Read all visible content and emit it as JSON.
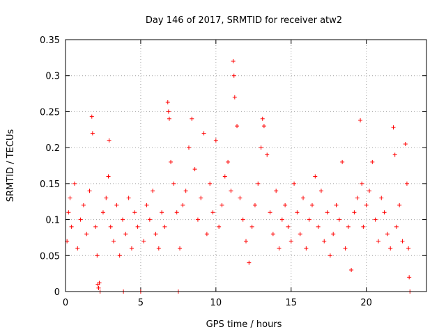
{
  "chart_data": {
    "type": "scatter",
    "title": "Day 146 of 2017, SRMTID for receiver atw2",
    "xlabel": "GPS time / hours",
    "ylabel": "SRMTID / TECUs",
    "xlim": [
      0,
      24
    ],
    "ylim": [
      0,
      0.35
    ],
    "xticks": [
      0,
      5,
      10,
      15,
      20
    ],
    "xtick_labels": [
      "0",
      "5",
      "10",
      "15",
      "20"
    ],
    "yticks": [
      0,
      0.05,
      0.1,
      0.15,
      0.2,
      0.25,
      0.3,
      0.35
    ],
    "ytick_labels": [
      "0",
      "0.05",
      "0.1",
      "0.15",
      "0.2",
      "0.25",
      "0.3",
      "0.35"
    ],
    "grid": true,
    "marker": "+",
    "color": "#ff0000",
    "series": [
      {
        "name": "SRMTID",
        "x": [
          0.1,
          0.2,
          0.3,
          0.4,
          0.6,
          0.8,
          1.0,
          1.2,
          1.4,
          1.6,
          1.75,
          1.8,
          2.0,
          2.1,
          2.15,
          2.2,
          2.25,
          2.3,
          2.5,
          2.7,
          2.85,
          2.9,
          3.0,
          3.2,
          3.4,
          3.6,
          3.8,
          3.85,
          4.0,
          4.2,
          4.4,
          4.6,
          4.8,
          5.0,
          5.2,
          5.4,
          5.6,
          5.8,
          6.0,
          6.2,
          6.4,
          6.6,
          6.8,
          6.85,
          6.9,
          7.0,
          7.2,
          7.4,
          7.5,
          7.6,
          7.8,
          8.0,
          8.2,
          8.4,
          8.6,
          8.8,
          9.0,
          9.2,
          9.4,
          9.6,
          9.8,
          10.0,
          10.2,
          10.4,
          10.6,
          10.8,
          11.0,
          11.15,
          11.2,
          11.25,
          11.4,
          11.6,
          11.8,
          12.0,
          12.2,
          12.4,
          12.6,
          12.8,
          13.0,
          13.1,
          13.2,
          13.4,
          13.6,
          13.8,
          14.0,
          14.2,
          14.4,
          14.6,
          14.8,
          15.0,
          15.2,
          15.4,
          15.6,
          15.8,
          16.0,
          16.2,
          16.4,
          16.6,
          16.8,
          17.0,
          17.2,
          17.4,
          17.6,
          17.8,
          18.0,
          18.2,
          18.4,
          18.6,
          18.8,
          19.0,
          19.2,
          19.4,
          19.6,
          19.7,
          19.8,
          20.0,
          20.2,
          20.4,
          20.6,
          20.8,
          21.0,
          21.2,
          21.4,
          21.6,
          21.8,
          21.9,
          22.0,
          22.2,
          22.4,
          22.6,
          22.7,
          22.8,
          22.85,
          22.9
        ],
        "y": [
          0.07,
          0.11,
          0.13,
          0.09,
          0.15,
          0.06,
          0.1,
          0.12,
          0.08,
          0.14,
          0.243,
          0.22,
          0.09,
          0.05,
          0.01,
          0.005,
          0.012,
          0.0,
          0.11,
          0.13,
          0.16,
          0.21,
          0.09,
          0.07,
          0.12,
          0.05,
          0.1,
          0.0,
          0.08,
          0.13,
          0.06,
          0.11,
          0.09,
          0.0,
          0.07,
          0.12,
          0.1,
          0.14,
          0.08,
          0.06,
          0.11,
          0.09,
          0.263,
          0.25,
          0.24,
          0.18,
          0.15,
          0.11,
          0.0,
          0.06,
          0.12,
          0.14,
          0.2,
          0.24,
          0.17,
          0.1,
          0.13,
          0.22,
          0.08,
          0.15,
          0.11,
          0.21,
          0.09,
          0.12,
          0.16,
          0.18,
          0.14,
          0.32,
          0.3,
          0.27,
          0.23,
          0.13,
          0.1,
          0.07,
          0.04,
          0.09,
          0.12,
          0.15,
          0.2,
          0.24,
          0.23,
          0.19,
          0.11,
          0.08,
          0.14,
          0.06,
          0.1,
          0.12,
          0.09,
          0.07,
          0.15,
          0.11,
          0.08,
          0.13,
          0.06,
          0.1,
          0.12,
          0.16,
          0.09,
          0.14,
          0.07,
          0.11,
          0.05,
          0.08,
          0.12,
          0.1,
          0.18,
          0.06,
          0.09,
          0.03,
          0.11,
          0.13,
          0.238,
          0.15,
          0.09,
          0.12,
          0.14,
          0.18,
          0.1,
          0.07,
          0.13,
          0.11,
          0.08,
          0.06,
          0.228,
          0.19,
          0.09,
          0.12,
          0.07,
          0.205,
          0.15,
          0.06,
          0.02,
          0.0
        ]
      }
    ]
  }
}
